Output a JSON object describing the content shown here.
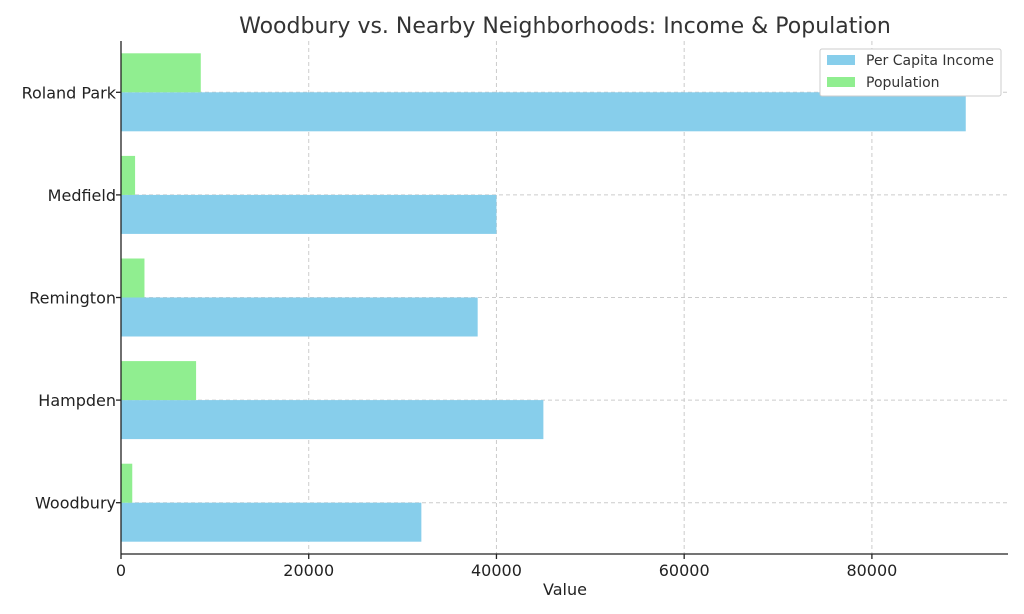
{
  "chart_data": {
    "type": "bar",
    "orientation": "horizontal",
    "title": "Woodbury vs. Nearby Neighborhoods: Income & Population",
    "xlabel": "Value",
    "ylabel": "",
    "xlim": [
      0,
      94500
    ],
    "xticks": [
      0,
      20000,
      40000,
      60000,
      80000
    ],
    "xtick_labels": [
      "0",
      "20000",
      "40000",
      "60000",
      "80000"
    ],
    "categories": [
      "Woodbury",
      "Hampden",
      "Remington",
      "Medfield",
      "Roland Park"
    ],
    "series": [
      {
        "name": "Per Capita Income",
        "color": "#87CEEB",
        "values": [
          32000,
          45000,
          38000,
          40000,
          90000
        ]
      },
      {
        "name": "Population",
        "color": "#90EE90",
        "values": [
          1200,
          8000,
          2500,
          1500,
          8500
        ]
      }
    ],
    "grid": true,
    "legend_position": "top-right"
  }
}
